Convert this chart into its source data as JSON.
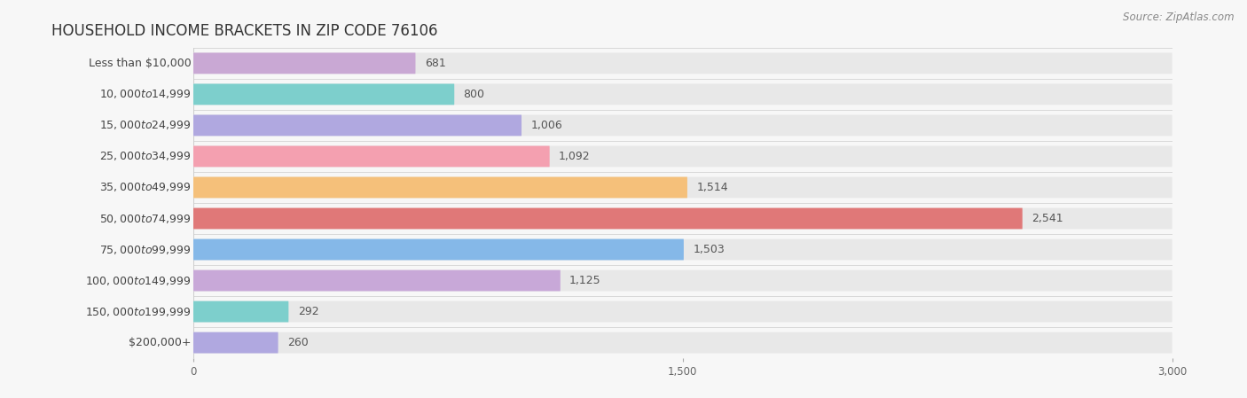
{
  "title": "HOUSEHOLD INCOME BRACKETS IN ZIP CODE 76106",
  "source": "Source: ZipAtlas.com",
  "categories": [
    "Less than $10,000",
    "$10,000 to $14,999",
    "$15,000 to $24,999",
    "$25,000 to $34,999",
    "$35,000 to $49,999",
    "$50,000 to $74,999",
    "$75,000 to $99,999",
    "$100,000 to $149,999",
    "$150,000 to $199,999",
    "$200,000+"
  ],
  "values": [
    681,
    800,
    1006,
    1092,
    1514,
    2541,
    1503,
    1125,
    292,
    260
  ],
  "bar_colors": [
    "#c9a8d4",
    "#7dcfcc",
    "#b0a8e0",
    "#f4a0b0",
    "#f5c07a",
    "#e07878",
    "#85b8e8",
    "#c8a8d8",
    "#7dcfcc",
    "#b0a8e0"
  ],
  "bg_color": "#f7f7f7",
  "bar_bg_color": "#e8e8e8",
  "xlim": [
    0,
    3000
  ],
  "xticks": [
    0,
    1500,
    3000
  ],
  "title_fontsize": 12,
  "label_fontsize": 9,
  "value_fontsize": 9,
  "source_fontsize": 8.5
}
